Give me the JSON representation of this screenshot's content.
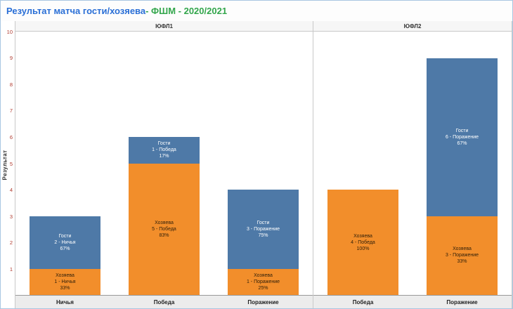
{
  "title": {
    "part1": "Результат матча гости/хозяева",
    "part2": " - ФШМ - 2020/2021"
  },
  "colors": {
    "title_blue": "#2a6fd6",
    "title_green": "#33a64c",
    "axis_tick_red": "#b03a2e",
    "guests_blue": "#4e79a7",
    "hosts_orange": "#f28e2b"
  },
  "series_styles": {
    "Гости": {
      "fill": "#4e79a7",
      "text": "#ffffff"
    },
    "Хозяева": {
      "fill": "#f28e2b",
      "text": "#33210a"
    }
  },
  "y_axis": {
    "label": "Результат",
    "ticks": [
      1,
      2,
      3,
      4,
      5,
      6,
      7,
      8,
      9,
      10
    ]
  },
  "chart_data": {
    "type": "bar",
    "stacked": true,
    "title": "Результат матча гости/хозяева - ФШМ - 2020/2021",
    "ylabel": "Результат",
    "ylim": [
      0,
      10
    ],
    "grid": false,
    "legend": [
      "Гости",
      "Хозяева"
    ],
    "panels": [
      {
        "label": "ЮФЛ1",
        "categories": [
          "Ничья",
          "Победа",
          "Поражение"
        ],
        "bars": [
          {
            "category": "Ничья",
            "segments": [
              {
                "series": "Хозяева",
                "value": 1,
                "lines": [
                  "Хозяева",
                  "1 - Ничья",
                  "33%"
                ]
              },
              {
                "series": "Гости",
                "value": 2,
                "lines": [
                  "Гости",
                  "2 - Ничья",
                  "67%"
                ]
              }
            ]
          },
          {
            "category": "Победа",
            "segments": [
              {
                "series": "Хозяева",
                "value": 5,
                "lines": [
                  "Хозяева",
                  "5 - Победа",
                  "83%"
                ]
              },
              {
                "series": "Гости",
                "value": 1,
                "lines": [
                  "Гости",
                  "1 - Победа",
                  "17%"
                ]
              }
            ]
          },
          {
            "category": "Поражение",
            "segments": [
              {
                "series": "Хозяева",
                "value": 1,
                "lines": [
                  "Хозяева",
                  "1 - Поражение",
                  "25%"
                ]
              },
              {
                "series": "Гости",
                "value": 3,
                "lines": [
                  "Гости",
                  "3 - Поражение",
                  "75%"
                ]
              }
            ]
          }
        ]
      },
      {
        "label": "ЮФЛ2",
        "categories": [
          "Победа",
          "Поражение"
        ],
        "bars": [
          {
            "category": "Победа",
            "segments": [
              {
                "series": "Хозяева",
                "value": 4,
                "lines": [
                  "Хозяева",
                  "4 - Победа",
                  "100%"
                ]
              }
            ]
          },
          {
            "category": "Поражение",
            "segments": [
              {
                "series": "Хозяева",
                "value": 3,
                "lines": [
                  "Хозяева",
                  "3 - Поражение",
                  "33%"
                ]
              },
              {
                "series": "Гости",
                "value": 6,
                "lines": [
                  "Гости",
                  "6 - Поражение",
                  "67%"
                ]
              }
            ]
          }
        ]
      }
    ]
  }
}
